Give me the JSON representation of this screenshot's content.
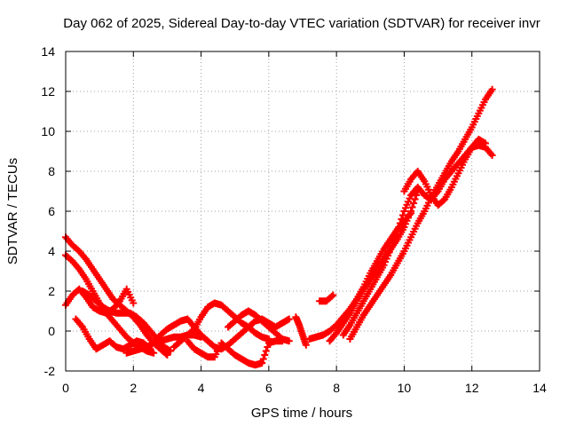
{
  "chart_data": {
    "type": "scatter",
    "title": "Day 062 of 2025, Sidereal Day-to-day VTEC variation (SDTVAR) for receiver invr",
    "xlabel": "GPS time / hours",
    "ylabel": "SDTVAR / TECUs",
    "xlim": [
      0,
      14
    ],
    "ylim": [
      -2,
      14
    ],
    "xticks": [
      0,
      2,
      4,
      6,
      8,
      10,
      12,
      14
    ],
    "yticks": [
      -2,
      0,
      2,
      4,
      6,
      8,
      10,
      12,
      14
    ],
    "xtick_labels": [
      "0",
      "2",
      "4",
      "6",
      "8",
      "10",
      "12",
      "14"
    ],
    "ytick_labels": [
      "-2",
      "0",
      "2",
      "4",
      "6",
      "8",
      "10",
      "12",
      "14"
    ],
    "grid": true,
    "marker": "+",
    "color": "#ff0000",
    "series": [
      {
        "name": "arc1",
        "x": [
          0.0,
          0.2,
          0.4,
          0.6,
          0.8,
          1.0,
          1.2,
          1.4,
          1.6,
          1.8,
          2.0,
          2.2,
          2.4,
          2.6,
          2.8,
          3.0
        ],
        "y": [
          4.7,
          4.3,
          4.0,
          3.6,
          3.1,
          2.6,
          2.1,
          1.6,
          1.3,
          1.0,
          0.7,
          0.3,
          -0.2,
          -0.6,
          -0.9,
          -1.2
        ]
      },
      {
        "name": "arc2",
        "x": [
          0.0,
          0.2,
          0.4,
          0.6,
          0.8,
          1.0,
          1.2,
          1.4,
          1.6,
          1.8,
          2.0,
          2.2,
          2.4,
          2.6
        ],
        "y": [
          3.8,
          3.5,
          3.1,
          2.6,
          2.0,
          1.4,
          0.9,
          0.5,
          0.1,
          -0.3,
          -0.6,
          -0.8,
          -1.0,
          -1.1
        ]
      },
      {
        "name": "arc3",
        "x": [
          0.0,
          0.2,
          0.4,
          0.6,
          0.8,
          1.0,
          1.2,
          1.4,
          1.6,
          1.8,
          2.0
        ],
        "y": [
          1.3,
          1.8,
          2.1,
          1.7,
          1.2,
          1.0,
          0.9,
          1.1,
          1.5,
          2.1,
          1.4
        ]
      },
      {
        "name": "arc4",
        "x": [
          0.3,
          0.5,
          0.7,
          0.9,
          1.1,
          1.3,
          1.5,
          1.7,
          1.9,
          2.1,
          2.3,
          2.5
        ],
        "y": [
          0.6,
          0.2,
          -0.4,
          -0.9,
          -0.7,
          -0.5,
          -0.8,
          -0.9,
          -0.7,
          -0.5,
          -0.6,
          -0.9
        ]
      },
      {
        "name": "arc5",
        "x": [
          0.5,
          0.7,
          0.9,
          1.1,
          1.3,
          1.5,
          1.7,
          1.9,
          2.1,
          2.3,
          2.5,
          2.7,
          2.9,
          3.1
        ],
        "y": [
          2.0,
          1.8,
          1.5,
          1.2,
          1.0,
          0.9,
          0.9,
          0.9,
          0.7,
          0.4,
          0.0,
          -0.4,
          -0.8,
          -1.0
        ]
      },
      {
        "name": "arc6",
        "x": [
          1.8,
          2.0,
          2.2,
          2.4,
          2.6,
          2.8,
          3.0,
          3.2,
          3.4,
          3.6,
          3.8,
          4.0
        ],
        "y": [
          -1.1,
          -1.0,
          -0.9,
          -0.8,
          -0.6,
          -0.5,
          -0.4,
          -0.3,
          -0.3,
          -0.2,
          -0.2,
          -0.3
        ]
      },
      {
        "name": "arc7",
        "x": [
          2.6,
          2.8,
          3.0,
          3.2,
          3.4,
          3.6,
          3.8,
          4.0,
          4.2,
          4.4,
          4.6,
          4.8,
          5.0,
          5.2,
          5.4,
          5.6,
          5.8,
          6.0,
          6.2,
          6.4,
          6.6
        ],
        "y": [
          -0.6,
          -0.2,
          0.1,
          0.3,
          0.5,
          0.6,
          0.2,
          -0.2,
          -0.5,
          -0.8,
          -0.9,
          -0.7,
          -0.4,
          -0.1,
          0.2,
          0.5,
          0.6,
          0.4,
          0.2,
          0.4,
          0.6
        ]
      },
      {
        "name": "arc8",
        "x": [
          3.2,
          3.4,
          3.6,
          3.8,
          4.0,
          4.2,
          4.4,
          4.6,
          4.8,
          5.0,
          5.2,
          5.4,
          5.6,
          5.8,
          6.0
        ],
        "y": [
          -0.8,
          -0.5,
          -0.2,
          0.1,
          0.7,
          1.2,
          1.4,
          1.3,
          1.0,
          0.7,
          0.4,
          0.2,
          -0.1,
          -0.3,
          -0.4
        ]
      },
      {
        "name": "arc9",
        "x": [
          3.6,
          3.8,
          4.0,
          4.2,
          4.4,
          4.6,
          4.8,
          5.0,
          5.2,
          5.4,
          5.6,
          5.8,
          6.0,
          6.2,
          6.4
        ],
        "y": [
          -0.5,
          -0.9,
          -1.1,
          -1.3,
          -1.3,
          -0.6,
          -0.9,
          -1.2,
          -1.4,
          -1.6,
          -1.7,
          -1.6,
          -0.6,
          -0.5,
          -0.5
        ]
      },
      {
        "name": "arc10",
        "x": [
          4.8,
          5.0,
          5.2,
          5.4,
          5.6,
          5.8,
          6.0,
          6.2,
          6.4,
          6.6
        ],
        "y": [
          0.2,
          0.5,
          0.8,
          1.0,
          0.8,
          0.5,
          0.2,
          -0.1,
          -0.4,
          -0.5
        ]
      },
      {
        "name": "arc11",
        "x": [
          6.8,
          6.9,
          7.0,
          7.1
        ],
        "y": [
          0.7,
          0.3,
          -0.2,
          -0.7
        ]
      },
      {
        "name": "arc12",
        "x": [
          7.2,
          7.4,
          7.6,
          7.8,
          8.0,
          8.2,
          8.4,
          8.6,
          8.8,
          9.0,
          9.2,
          9.4,
          9.6,
          9.8,
          10.0,
          10.2
        ],
        "y": [
          -0.4,
          -0.3,
          -0.2,
          0.0,
          0.3,
          0.7,
          1.1,
          1.6,
          2.2,
          2.9,
          3.5,
          4.1,
          4.6,
          5.1,
          5.5,
          5.9
        ]
      },
      {
        "name": "arc13",
        "x": [
          7.8,
          8.0,
          8.2,
          8.4,
          8.6,
          8.8,
          9.0,
          9.2,
          9.4,
          9.6,
          9.8,
          10.0,
          10.2,
          10.4
        ],
        "y": [
          -0.5,
          -0.1,
          0.4,
          0.9,
          1.5,
          2.1,
          2.6,
          3.1,
          3.6,
          4.1,
          4.6,
          5.2,
          6.0,
          7.0
        ]
      },
      {
        "name": "arc14",
        "x": [
          7.5,
          7.7,
          7.9
        ],
        "y": [
          1.5,
          1.5,
          1.8
        ]
      },
      {
        "name": "arc15",
        "x": [
          8.2,
          8.4,
          8.6,
          8.8,
          9.0,
          9.2,
          9.4,
          9.6,
          9.8,
          10.0,
          10.2,
          10.4,
          10.6,
          10.8,
          11.0,
          11.2,
          11.4,
          11.6,
          11.8,
          12.0,
          12.2,
          12.4,
          12.6
        ],
        "y": [
          -0.2,
          0.3,
          0.9,
          1.5,
          2.1,
          2.7,
          3.3,
          4.1,
          5.0,
          6.0,
          6.8,
          7.2,
          6.8,
          6.6,
          7.0,
          7.6,
          8.0,
          8.4,
          8.8,
          9.2,
          9.3,
          9.2,
          8.8
        ]
      },
      {
        "name": "arc16",
        "x": [
          8.4,
          8.6,
          8.8,
          9.0,
          9.2,
          9.4,
          9.6,
          9.8,
          10.0,
          10.2,
          10.4,
          10.6,
          10.8,
          11.0,
          11.2,
          11.4,
          11.6,
          11.8,
          12.0,
          12.2,
          12.4,
          12.6
        ],
        "y": [
          -0.4,
          0.2,
          0.8,
          1.3,
          1.8,
          2.3,
          2.8,
          3.4,
          4.0,
          4.7,
          5.4,
          6.0,
          6.7,
          7.3,
          7.9,
          8.5,
          9.0,
          9.6,
          10.2,
          10.9,
          11.6,
          12.1
        ]
      },
      {
        "name": "arc17",
        "x": [
          10.0,
          10.2,
          10.4,
          10.6,
          10.8,
          11.0,
          11.2,
          11.4,
          11.6,
          11.8,
          12.0,
          12.2,
          12.4
        ],
        "y": [
          7.0,
          7.6,
          8.0,
          7.5,
          6.8,
          6.3,
          6.6,
          7.2,
          7.9,
          8.6,
          9.2,
          9.6,
          9.4
        ]
      }
    ]
  }
}
